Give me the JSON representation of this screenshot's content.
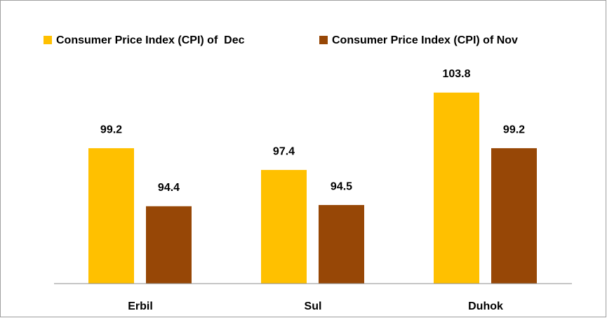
{
  "chart_data": {
    "type": "bar",
    "categories": [
      "Erbil",
      "Sul",
      "Duhok"
    ],
    "series": [
      {
        "name": "Consumer Price Index (CPI) of  Dec",
        "color": "#ffc000",
        "values": [
          99.2,
          97.4,
          103.8
        ]
      },
      {
        "name": "Consumer Price Index (CPI) of Nov",
        "color": "#974706",
        "values": [
          94.4,
          94.5,
          99.2
        ]
      }
    ],
    "ylim": [
      88,
      106
    ],
    "legend": "top"
  }
}
